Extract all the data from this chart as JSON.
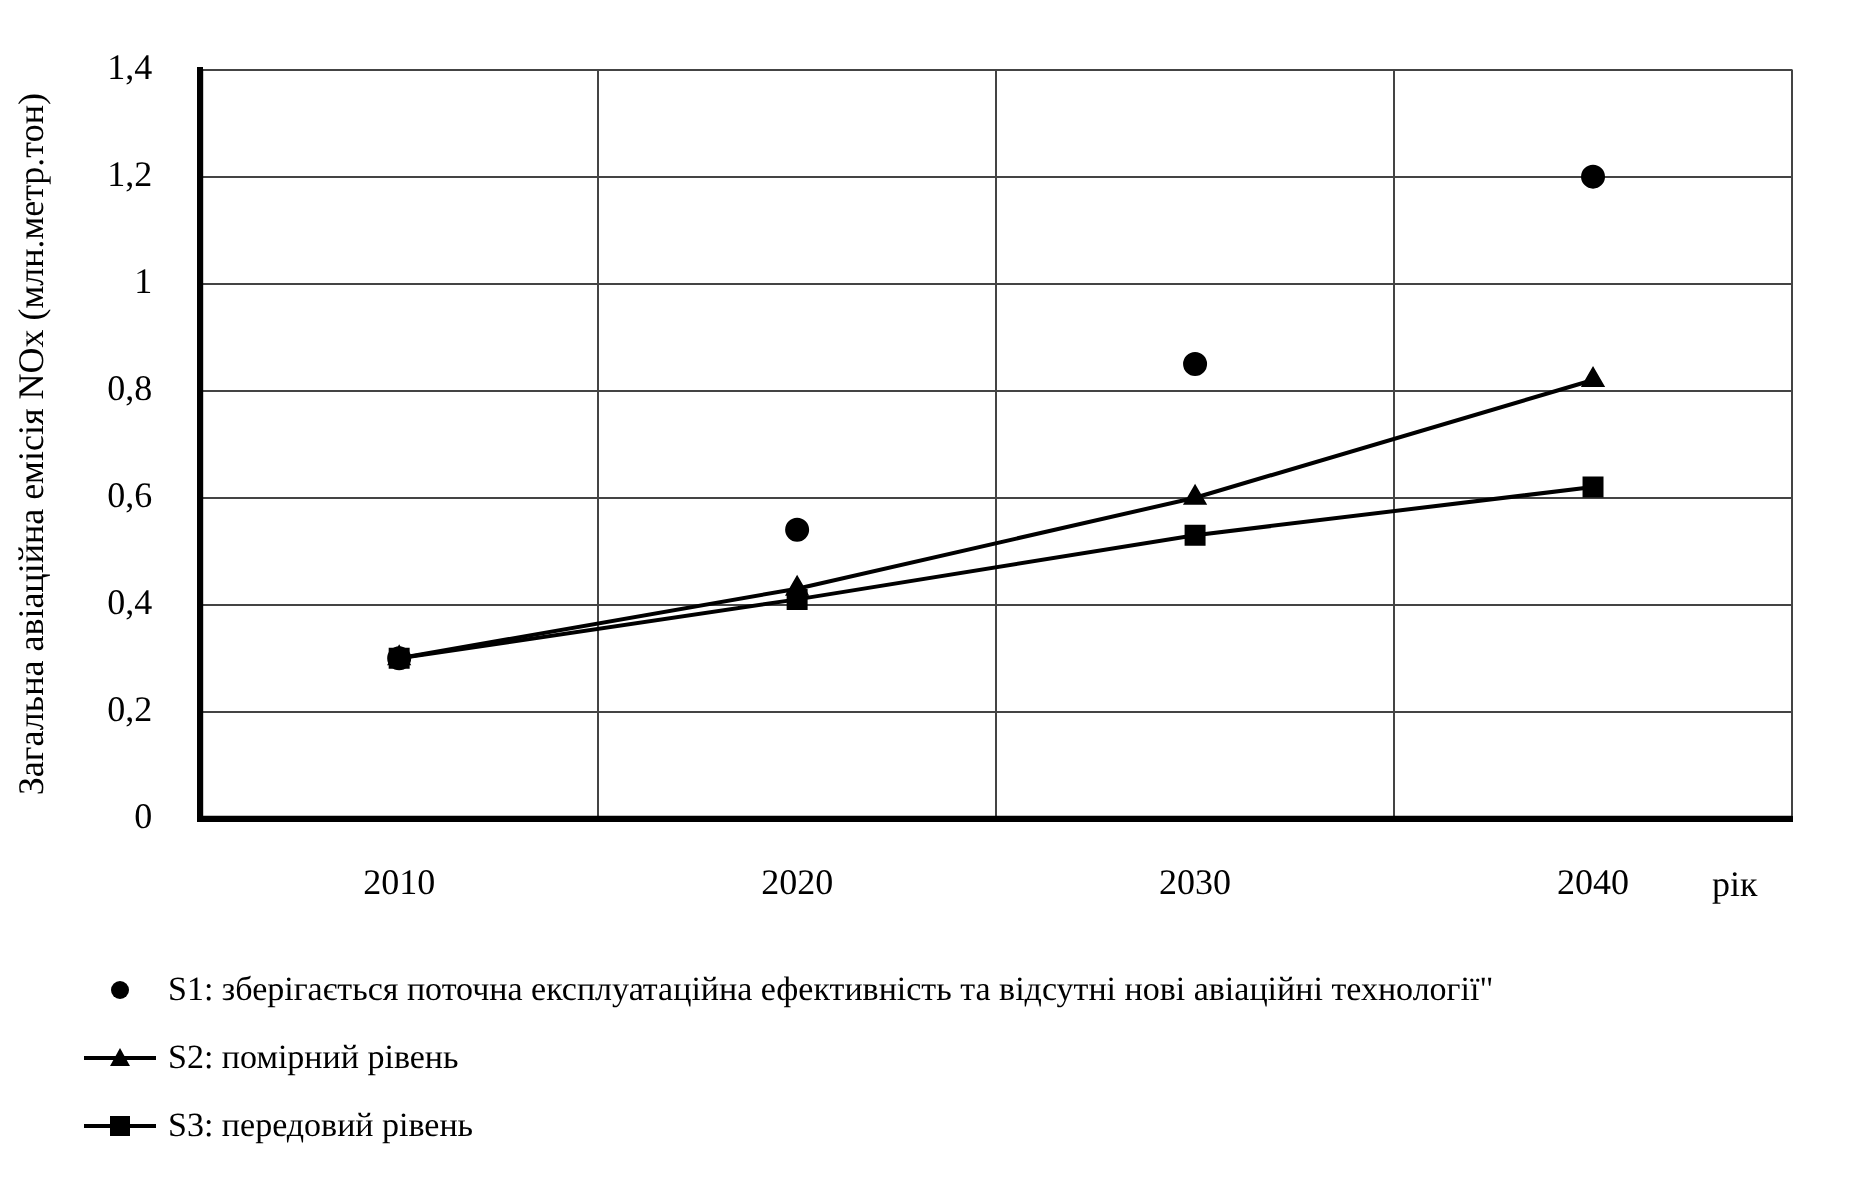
{
  "chart_data": {
    "type": "line",
    "xlabel": "рік",
    "ylabel": "Загальна авіаційна емісія NOx (млн.метр.тон)",
    "categories": [
      "2010",
      "2020",
      "2030",
      "2040"
    ],
    "series": [
      {
        "name": "S1: зберігається поточна експлуатаційна ефективність та відсутні нові авіаційні технології\"",
        "type": "scatter",
        "marker": "circle",
        "color": "#000000",
        "values": [
          0.3,
          0.54,
          0.85,
          1.2
        ]
      },
      {
        "name": "S2: помірний рівень",
        "type": "line",
        "marker": "triangle",
        "color": "#000000",
        "values": [
          0.3,
          0.43,
          0.6,
          0.82
        ]
      },
      {
        "name": "S3: передовий рівень",
        "type": "line",
        "marker": "square",
        "color": "#000000",
        "values": [
          0.3,
          0.41,
          0.53,
          0.62
        ]
      }
    ],
    "ylim": [
      0,
      1.4
    ],
    "yticks": [
      0,
      {
        "value": 0.2,
        "label": "0,2"
      },
      {
        "value": 0.4,
        "label": "0,4"
      },
      {
        "value": 0.6,
        "label": "0,6"
      },
      {
        "value": 0.8,
        "label": "0,8"
      },
      1,
      {
        "value": 1.2,
        "label": "1,2"
      },
      {
        "value": 1.4,
        "label": "1,4"
      }
    ],
    "grid": true,
    "legend": "bottom",
    "line_style": "solid"
  }
}
